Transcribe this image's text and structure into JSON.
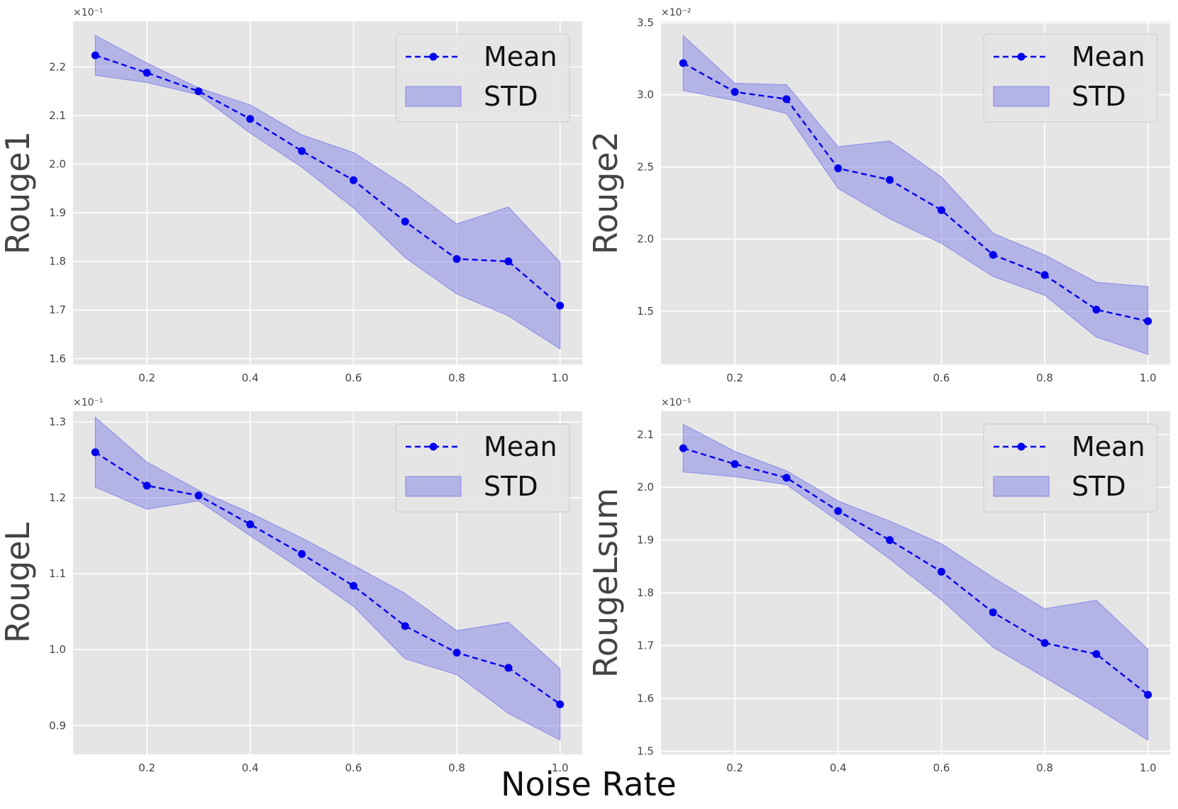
{
  "figure": {
    "xlabel": "Noise Rate"
  },
  "colors": {
    "line": "#0000ee",
    "band": "#8a8ae8",
    "panel_bg": "#e5e5e5",
    "grid": "#ffffff"
  },
  "chart_data": [
    {
      "type": "line",
      "ylabel": "Rouge1",
      "scale_label": "×10⁻¹",
      "x": [
        0.1,
        0.2,
        0.3,
        0.4,
        0.5,
        0.6,
        0.7,
        0.8,
        0.9,
        1.0
      ],
      "mean": [
        2.224,
        2.188,
        2.15,
        2.093,
        2.027,
        1.967,
        1.882,
        1.805,
        1.8,
        1.709
      ],
      "std_upper": [
        2.265,
        2.208,
        2.157,
        2.122,
        2.06,
        2.024,
        1.956,
        1.877,
        1.912,
        1.798
      ],
      "std_lower": [
        2.183,
        2.168,
        2.143,
        2.064,
        1.994,
        1.91,
        1.808,
        1.733,
        1.688,
        1.62
      ],
      "xlim": [
        0.057,
        1.043
      ],
      "ylim": [
        1.588,
        2.294
      ],
      "xticks": [
        0.2,
        0.4,
        0.6,
        0.8,
        1.0
      ],
      "xtick_labels": [
        "0.2",
        "0.4",
        "0.6",
        "0.8",
        "1.0"
      ],
      "yticks": [
        1.6,
        1.7,
        1.8,
        1.9,
        2.0,
        2.1,
        2.2
      ],
      "ytick_labels": [
        "1.6",
        "1.7",
        "1.8",
        "1.9",
        "2.0",
        "2.1",
        "2.2"
      ],
      "legend": {
        "mean_label": "Mean",
        "std_label": "STD",
        "position": "upper right"
      }
    },
    {
      "type": "line",
      "ylabel": "Rouge2",
      "scale_label": "×10⁻²",
      "x": [
        0.1,
        0.2,
        0.3,
        0.4,
        0.5,
        0.6,
        0.7,
        0.8,
        0.9,
        1.0
      ],
      "mean": [
        3.22,
        3.02,
        2.97,
        2.49,
        2.41,
        2.2,
        1.89,
        1.75,
        1.51,
        1.43
      ],
      "std_upper": [
        3.41,
        3.08,
        3.07,
        2.64,
        2.68,
        2.43,
        2.04,
        1.89,
        1.7,
        1.67
      ],
      "std_lower": [
        3.03,
        2.96,
        2.87,
        2.35,
        2.14,
        1.97,
        1.74,
        1.61,
        1.32,
        1.2
      ],
      "xlim": [
        0.057,
        1.043
      ],
      "ylim": [
        1.13,
        3.51
      ],
      "xticks": [
        0.2,
        0.4,
        0.6,
        0.8,
        1.0
      ],
      "xtick_labels": [
        "0.2",
        "0.4",
        "0.6",
        "0.8",
        "1.0"
      ],
      "yticks": [
        1.5,
        2.0,
        2.5,
        3.0,
        3.5
      ],
      "ytick_labels": [
        "1.5",
        "2.0",
        "2.5",
        "3.0",
        "3.5"
      ],
      "legend": {
        "mean_label": "Mean",
        "std_label": "STD",
        "position": "upper right"
      }
    },
    {
      "type": "line",
      "ylabel": "RougeL",
      "scale_label": "×10⁻¹",
      "x": [
        0.1,
        0.2,
        0.3,
        0.4,
        0.5,
        0.6,
        0.7,
        0.8,
        0.9,
        1.0
      ],
      "mean": [
        1.26,
        1.216,
        1.203,
        1.165,
        1.126,
        1.084,
        1.031,
        0.996,
        0.976,
        0.928
      ],
      "std_upper": [
        1.306,
        1.247,
        1.21,
        1.18,
        1.147,
        1.111,
        1.074,
        1.025,
        1.036,
        0.975
      ],
      "std_lower": [
        1.214,
        1.185,
        1.196,
        1.15,
        1.105,
        1.057,
        0.988,
        0.967,
        0.916,
        0.881
      ],
      "xlim": [
        0.057,
        1.043
      ],
      "ylim": [
        0.862,
        1.314
      ],
      "xticks": [
        0.2,
        0.4,
        0.6,
        0.8,
        1.0
      ],
      "xtick_labels": [
        "0.2",
        "0.4",
        "0.6",
        "0.8",
        "1.0"
      ],
      "yticks": [
        0.9,
        1.0,
        1.1,
        1.2,
        1.3
      ],
      "ytick_labels": [
        "0.9",
        "1.0",
        "1.1",
        "1.2",
        "1.3"
      ],
      "legend": {
        "mean_label": "Mean",
        "std_label": "STD",
        "position": "upper right"
      }
    },
    {
      "type": "line",
      "ylabel": "RougeLsum",
      "scale_label": "×10⁻¹",
      "x": [
        0.1,
        0.2,
        0.3,
        0.4,
        0.5,
        0.6,
        0.7,
        0.8,
        0.9,
        1.0
      ],
      "mean": [
        2.074,
        2.044,
        2.018,
        1.955,
        1.9,
        1.84,
        1.763,
        1.705,
        1.684,
        1.607
      ],
      "std_upper": [
        2.119,
        2.068,
        2.031,
        1.974,
        1.936,
        1.893,
        1.829,
        1.77,
        1.786,
        1.693
      ],
      "std_lower": [
        2.029,
        2.02,
        2.005,
        1.936,
        1.864,
        1.787,
        1.697,
        1.64,
        1.582,
        1.521
      ],
      "xlim": [
        0.057,
        1.043
      ],
      "ylim": [
        1.494,
        2.144
      ],
      "xticks": [
        0.2,
        0.4,
        0.6,
        0.8,
        1.0
      ],
      "xtick_labels": [
        "0.2",
        "0.4",
        "0.6",
        "0.8",
        "1.0"
      ],
      "yticks": [
        1.5,
        1.6,
        1.7,
        1.8,
        1.9,
        2.0,
        2.1
      ],
      "ytick_labels": [
        "1.5",
        "1.6",
        "1.7",
        "1.8",
        "1.9",
        "2.0",
        "2.1"
      ],
      "legend": {
        "mean_label": "Mean",
        "std_label": "STD",
        "position": "upper right"
      }
    }
  ]
}
